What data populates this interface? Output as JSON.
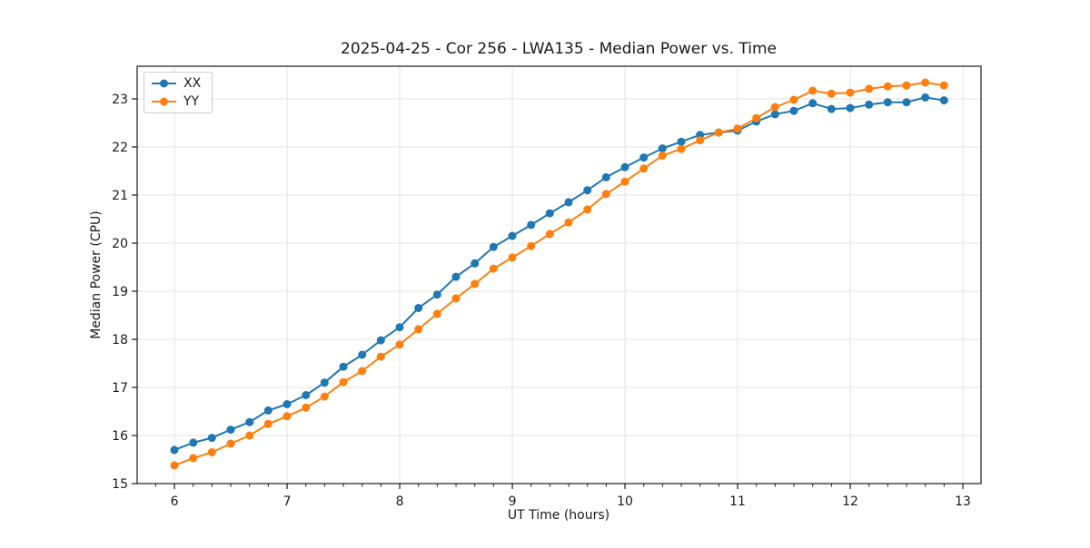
{
  "chart_data": {
    "type": "line",
    "title": "2025-04-25 - Cor 256 - LWA135 - Median Power vs. Time",
    "xlabel": "UT Time (hours)",
    "ylabel": "Median Power (CPU)",
    "xlim": [
      5.669,
      13.161
    ],
    "ylim": [
      15.0,
      23.679
    ],
    "xticks": [
      6,
      7,
      8,
      9,
      10,
      11,
      12,
      13
    ],
    "yticks": [
      15,
      16,
      17,
      18,
      19,
      20,
      21,
      22,
      23
    ],
    "x_minor_step": 0.166667,
    "grid": true,
    "grid_color": "#e3e3e3",
    "spine_color": "#1a1a1a",
    "legend": {
      "position": "upper left",
      "entries": [
        {
          "label": "XX",
          "color": "#1f77b4"
        },
        {
          "label": "YY",
          "color": "#ff7f0e"
        }
      ]
    },
    "x": [
      6.0,
      6.167,
      6.333,
      6.5,
      6.667,
      6.833,
      7.0,
      7.167,
      7.333,
      7.5,
      7.667,
      7.833,
      8.0,
      8.167,
      8.333,
      8.5,
      8.667,
      8.833,
      9.0,
      9.167,
      9.333,
      9.5,
      9.667,
      9.833,
      10.0,
      10.167,
      10.333,
      10.5,
      10.667,
      10.833,
      11.0,
      11.167,
      11.333,
      11.5,
      11.667,
      11.833,
      12.0,
      12.167,
      12.333,
      12.5,
      12.667,
      12.833
    ],
    "series": [
      {
        "name": "XX",
        "color": "#1f77b4",
        "values": [
          15.7,
          15.85,
          15.95,
          16.12,
          16.28,
          16.52,
          16.65,
          16.84,
          17.1,
          17.43,
          17.68,
          17.98,
          18.25,
          18.65,
          18.93,
          19.3,
          19.58,
          19.92,
          20.15,
          20.38,
          20.62,
          20.85,
          21.1,
          21.37,
          21.58,
          21.78,
          21.97,
          22.11,
          22.25,
          22.3,
          22.34,
          22.53,
          22.68,
          22.75,
          22.91,
          22.79,
          22.81,
          22.88,
          22.93,
          22.93,
          23.03,
          22.97
        ]
      },
      {
        "name": "YY",
        "color": "#ff7f0e",
        "values": [
          15.38,
          15.53,
          15.65,
          15.83,
          16.0,
          16.24,
          16.4,
          16.58,
          16.81,
          17.11,
          17.34,
          17.64,
          17.89,
          18.21,
          18.53,
          18.85,
          19.15,
          19.47,
          19.7,
          19.94,
          20.19,
          20.43,
          20.7,
          21.02,
          21.28,
          21.55,
          21.82,
          21.96,
          22.14,
          22.3,
          22.38,
          22.6,
          22.83,
          22.98,
          23.17,
          23.11,
          23.13,
          23.21,
          23.26,
          23.28,
          23.34,
          23.28
        ]
      }
    ]
  }
}
